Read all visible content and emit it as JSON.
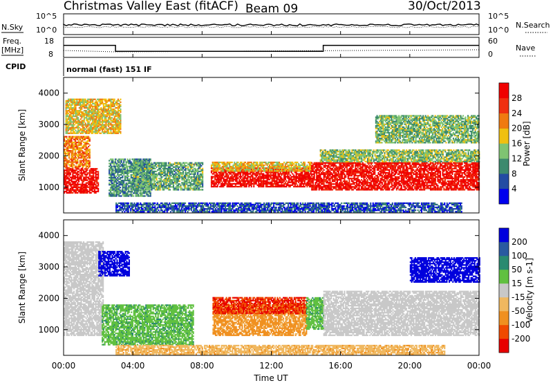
{
  "header": {
    "station": "Christmas Valley East (fitACF)",
    "beam": "Beam 09",
    "date": "30/Oct/2013"
  },
  "noise_panel": {
    "left_label": "N.Sky",
    "right_label": "N.Search",
    "left_ticks": [
      "10^5",
      "10^0"
    ],
    "right_ticks": [
      "10^5",
      "10^0"
    ]
  },
  "freq_panel": {
    "left_label_1": "Freq.",
    "left_label_2": "[MHz]",
    "right_label": "Nave",
    "left_ticks": [
      "18",
      "8"
    ],
    "right_ticks": [
      "60",
      "0"
    ]
  },
  "cpid": {
    "label": "CPID",
    "value": "normal (fast) 151 IF"
  },
  "colors": {
    "power_scale": [
      "#0000ee",
      "#234ca3",
      "#3d8a6e",
      "#7fc472",
      "#f0c010",
      "#f07a10",
      "#f03010",
      "#f00000"
    ],
    "velocity_scale": [
      "#e80000",
      "#f04a00",
      "#f09020",
      "#f0b860",
      "#c8c8c8",
      "#60c040",
      "#2a8a70",
      "#2a5aa0",
      "#0000dd"
    ]
  },
  "chart_data": [
    {
      "type": "heatmap",
      "name": "power",
      "ylabel": "Slant Range [km]",
      "xlabel": "",
      "ylim": [
        180,
        4500
      ],
      "yticks": [
        "1000",
        "2000",
        "3000",
        "4000"
      ],
      "xlim_hours": [
        0,
        24
      ],
      "colorbar": {
        "label": "Power [dB]",
        "ticks": [
          "28",
          "24",
          "20",
          "16",
          "12",
          "8",
          "4"
        ],
        "range": [
          0,
          32
        ]
      },
      "bands": [
        {
          "t_start": 0.0,
          "t_end": 2.0,
          "r_low": 800,
          "r_high": 1600,
          "value": 30
        },
        {
          "t_start": 0.0,
          "t_end": 1.5,
          "r_low": 1600,
          "r_high": 2600,
          "value": 22
        },
        {
          "t_start": 0.1,
          "t_end": 3.3,
          "r_low": 2700,
          "r_high": 3800,
          "value": 18
        },
        {
          "t_start": 2.6,
          "t_end": 5.0,
          "r_low": 700,
          "r_high": 1900,
          "value": 10
        },
        {
          "t_start": 4.0,
          "t_end": 8.0,
          "r_low": 900,
          "r_high": 1800,
          "value": 12
        },
        {
          "t_start": 8.5,
          "t_end": 14.3,
          "r_low": 1000,
          "r_high": 1600,
          "value": 30
        },
        {
          "t_start": 8.5,
          "t_end": 14.3,
          "r_low": 1500,
          "r_high": 1800,
          "value": 18
        },
        {
          "t_start": 14.3,
          "t_end": 24.0,
          "r_low": 900,
          "r_high": 1800,
          "value": 29
        },
        {
          "t_start": 14.8,
          "t_end": 24.0,
          "r_low": 1800,
          "r_high": 2200,
          "value": 14
        },
        {
          "t_start": 18.0,
          "t_end": 24.0,
          "r_low": 2400,
          "r_high": 3300,
          "value": 13
        },
        {
          "t_start": 3.0,
          "t_end": 23.0,
          "r_low": 200,
          "r_high": 500,
          "value": 6
        }
      ]
    },
    {
      "type": "heatmap",
      "name": "velocity",
      "ylabel": "Slant Range [km]",
      "xlabel": "Time UT",
      "ylim": [
        180,
        4500
      ],
      "yticks": [
        "1000",
        "2000",
        "3000",
        "4000"
      ],
      "xticks": [
        "00:00",
        "04:00",
        "08:00",
        "12:00",
        "16:00",
        "20:00",
        "00:00"
      ],
      "xlim_hours": [
        0,
        24
      ],
      "colorbar": {
        "label": "Velocity [m s-1]",
        "ticks": [
          "200",
          "100",
          "50",
          "15",
          "-15",
          "-50",
          "-100",
          "-200"
        ],
        "range": [
          -250,
          250
        ]
      },
      "bands": [
        {
          "t_start": 0.0,
          "t_end": 2.3,
          "r_low": 800,
          "r_high": 3800,
          "value": 0
        },
        {
          "t_start": 2.0,
          "t_end": 3.8,
          "r_low": 2700,
          "r_high": 3500,
          "value": 220
        },
        {
          "t_start": 2.2,
          "t_end": 7.5,
          "r_low": 500,
          "r_high": 1800,
          "value": 40
        },
        {
          "t_start": 8.6,
          "t_end": 14.0,
          "r_low": 800,
          "r_high": 1800,
          "value": -60
        },
        {
          "t_start": 8.6,
          "t_end": 14.0,
          "r_low": 1500,
          "r_high": 2000,
          "value": -200
        },
        {
          "t_start": 14.0,
          "t_end": 15.0,
          "r_low": 1000,
          "r_high": 2000,
          "value": 40
        },
        {
          "t_start": 15.0,
          "t_end": 24.0,
          "r_low": 800,
          "r_high": 2200,
          "value": 0
        },
        {
          "t_start": 20.0,
          "t_end": 24.0,
          "r_low": 2500,
          "r_high": 3300,
          "value": 220
        },
        {
          "t_start": 3.0,
          "t_end": 22.0,
          "r_low": 200,
          "r_high": 500,
          "value": -40
        }
      ]
    },
    {
      "type": "line",
      "name": "frequency",
      "ylabel": "Freq. [MHz]",
      "x_hours": [
        0,
        3.0,
        3.0,
        15.0,
        15.0,
        24
      ],
      "values": [
        14,
        14,
        11,
        11,
        14,
        14
      ],
      "ylim": [
        8,
        18
      ]
    }
  ]
}
